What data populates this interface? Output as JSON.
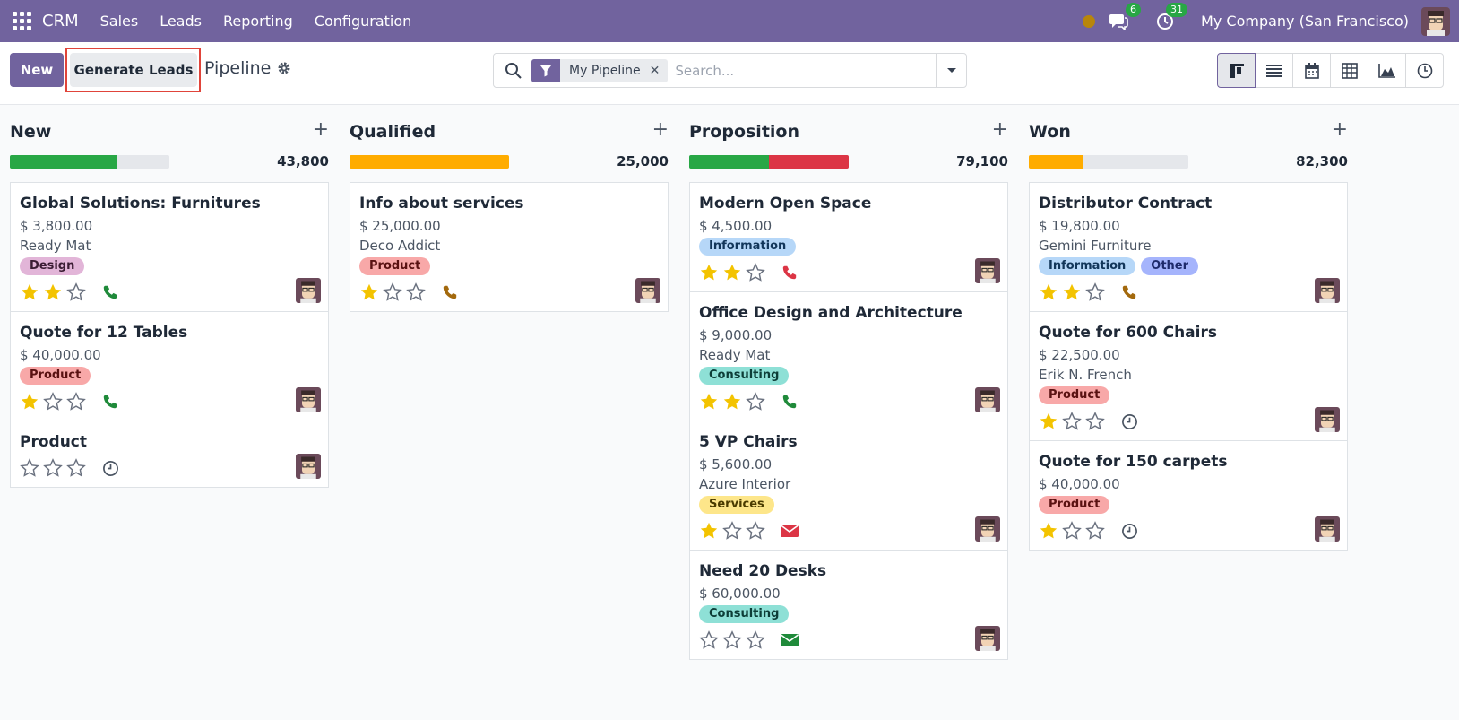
{
  "navbar": {
    "brand": "CRM",
    "menu": [
      "Sales",
      "Leads",
      "Reporting",
      "Configuration"
    ],
    "messages_count": "6",
    "activities_count": "31",
    "company": "My Company (San Francisco)"
  },
  "control": {
    "new_label": "New",
    "generate_label": "Generate Leads",
    "breadcrumb": "Pipeline",
    "facet_label": "My Pipeline",
    "facet_close": "✕",
    "search_placeholder": "Search..."
  },
  "colors": {
    "brand": "#71639e",
    "green": "#28a745",
    "red": "#dc3545",
    "orange": "#ffac00",
    "grey": "#e5e7eb"
  },
  "columns": [
    {
      "title": "New",
      "total": "43,800",
      "progress": [
        {
          "color": "#28a745",
          "fraction": 0.67
        }
      ],
      "cards": [
        {
          "title": "Global Solutions: Furnitures",
          "amount": "$ 3,800.00",
          "customer": "Ready Mat",
          "tags": [
            {
              "label": "Design",
              "bg": "#e2b5d8",
              "fg": "#3b1d34"
            }
          ],
          "stars": 2,
          "activity": "phone-green-icon"
        },
        {
          "title": "Quote for 12 Tables",
          "amount": "$ 40,000.00",
          "customer": "",
          "tags": [
            {
              "label": "Product",
              "bg": "#f8a8a8",
              "fg": "#5a1212"
            }
          ],
          "stars": 1,
          "activity": "phone-green-icon"
        },
        {
          "title": "Product",
          "amount": "",
          "customer": "",
          "tags": [],
          "stars": 0,
          "activity": "clock-icon"
        }
      ]
    },
    {
      "title": "Qualified",
      "total": "25,000",
      "progress": [
        {
          "color": "#ffac00",
          "fraction": 1.0
        }
      ],
      "cards": [
        {
          "title": "Info about services",
          "amount": "$ 25,000.00",
          "customer": "Deco Addict",
          "tags": [
            {
              "label": "Product",
              "bg": "#f8a8a8",
              "fg": "#5a1212"
            }
          ],
          "stars": 1,
          "activity": "phone-orange-icon"
        }
      ]
    },
    {
      "title": "Proposition",
      "total": "79,100",
      "progress": [
        {
          "color": "#28a745",
          "fraction": 0.5
        },
        {
          "color": "#dc3545",
          "fraction": 0.5
        }
      ],
      "cards": [
        {
          "title": "Modern Open Space",
          "amount": "$ 4,500.00",
          "customer": "",
          "tags": [
            {
              "label": "Information",
              "bg": "#b6d7f8",
              "fg": "#12365a"
            }
          ],
          "stars": 2,
          "activity": "phone-red-icon"
        },
        {
          "title": "Office Design and Architecture",
          "amount": "$ 9,000.00",
          "customer": "Ready Mat",
          "tags": [
            {
              "label": "Consulting",
              "bg": "#8ee0d6",
              "fg": "#0d3d37"
            }
          ],
          "stars": 2,
          "activity": "phone-green-icon"
        },
        {
          "title": "5 VP Chairs",
          "amount": "$ 5,600.00",
          "customer": "Azure Interior",
          "tags": [
            {
              "label": "Services",
              "bg": "#fde68a",
              "fg": "#4a3b00"
            }
          ],
          "stars": 1,
          "activity": "envelope-red-icon"
        },
        {
          "title": "Need 20 Desks",
          "amount": "$ 60,000.00",
          "customer": "",
          "tags": [
            {
              "label": "Consulting",
              "bg": "#8ee0d6",
              "fg": "#0d3d37"
            }
          ],
          "stars": 0,
          "activity": "envelope-green-icon"
        }
      ]
    },
    {
      "title": "Won",
      "total": "82,300",
      "progress": [
        {
          "color": "#ffac00",
          "fraction": 0.34
        }
      ],
      "cards": [
        {
          "title": "Distributor Contract",
          "amount": "$ 19,800.00",
          "customer": "Gemini Furniture",
          "tags": [
            {
              "label": "Information",
              "bg": "#b6d7f8",
              "fg": "#12365a"
            },
            {
              "label": "Other",
              "bg": "#a5b4fc",
              "fg": "#1e2a6b"
            }
          ],
          "stars": 2,
          "activity": "phone-orange-icon"
        },
        {
          "title": "Quote for 600 Chairs",
          "amount": "$ 22,500.00",
          "customer": "Erik N. French",
          "tags": [
            {
              "label": "Product",
              "bg": "#f8a8a8",
              "fg": "#5a1212"
            }
          ],
          "stars": 1,
          "activity": "clock-icon"
        },
        {
          "title": "Quote for 150 carpets",
          "amount": "$ 40,000.00",
          "customer": "",
          "tags": [
            {
              "label": "Product",
              "bg": "#f8a8a8",
              "fg": "#5a1212"
            }
          ],
          "stars": 1,
          "activity": "clock-icon"
        }
      ]
    }
  ]
}
